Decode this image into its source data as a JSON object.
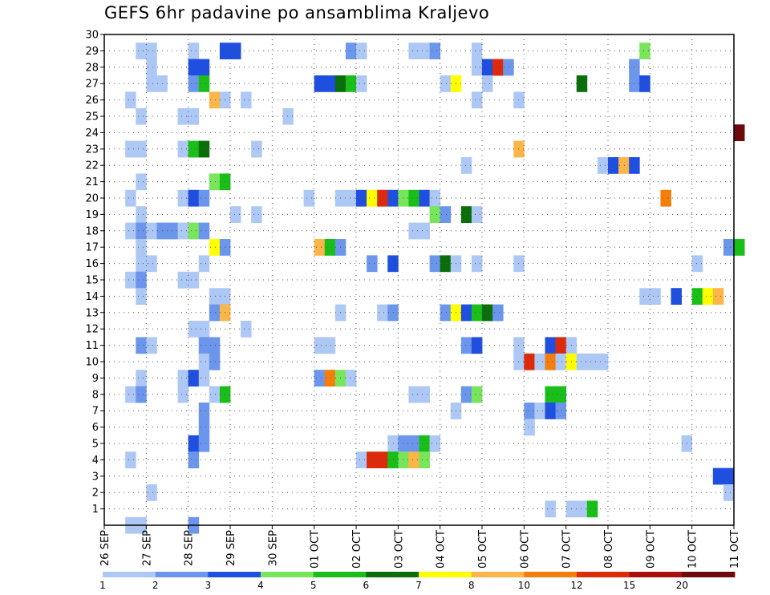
{
  "chart_data": {
    "type": "heatmap",
    "title": "GEFS 6hr padavine po ansamblima Kraljevo",
    "xlabel": "",
    "ylabel": "",
    "x_ticks": [
      "26 SEP",
      "27 SEP",
      "28 SEP",
      "29 SEP",
      "30 SEP",
      "01 OCT",
      "02 OCT",
      "03 OCT",
      "04 OCT",
      "05 OCT",
      "06 OCT",
      "07 OCT",
      "08 OCT",
      "09 OCT",
      "10 OCT",
      "11 OCT"
    ],
    "y_ticks": [
      "1",
      "2",
      "3",
      "4",
      "5",
      "6",
      "7",
      "8",
      "9",
      "10",
      "11",
      "12",
      "13",
      "14",
      "15",
      "16",
      "17",
      "18",
      "19",
      "20",
      "21",
      "22",
      "23",
      "24",
      "25",
      "26",
      "27",
      "28",
      "29",
      "30"
    ],
    "xlim_steps": [
      0,
      60
    ],
    "ylim_members": [
      0,
      30
    ],
    "legend_levels": [
      "1",
      "2",
      "3",
      "4",
      "5",
      "6",
      "7",
      "8",
      "10",
      "12",
      "15",
      "20"
    ],
    "colors": [
      "#aec8f5",
      "#6b96ec",
      "#1f4fe0",
      "#78e65a",
      "#19be19",
      "#0a6e0a",
      "#ffff00",
      "#fbb548",
      "#f47d0c",
      "#dd2a0a",
      "#a80e0e",
      "#6e0a0a"
    ],
    "cells": [
      [
        3,
        29,
        0
      ],
      [
        4,
        29,
        0
      ],
      [
        8,
        29,
        0
      ],
      [
        11,
        29,
        2
      ],
      [
        12,
        29,
        2
      ],
      [
        23,
        29,
        1
      ],
      [
        24,
        29,
        0
      ],
      [
        29,
        29,
        0
      ],
      [
        30,
        29,
        0
      ],
      [
        31,
        29,
        1
      ],
      [
        35,
        29,
        0
      ],
      [
        51,
        29,
        3
      ],
      [
        4,
        28,
        0
      ],
      [
        8,
        28,
        2
      ],
      [
        9,
        28,
        2
      ],
      [
        35,
        28,
        0
      ],
      [
        36,
        28,
        2
      ],
      [
        37,
        28,
        9
      ],
      [
        38,
        28,
        1
      ],
      [
        50,
        28,
        1
      ],
      [
        4,
        27,
        0
      ],
      [
        5,
        27,
        0
      ],
      [
        8,
        27,
        1
      ],
      [
        9,
        27,
        4
      ],
      [
        20,
        27,
        2
      ],
      [
        21,
        27,
        2
      ],
      [
        22,
        27,
        5
      ],
      [
        23,
        27,
        4
      ],
      [
        24,
        27,
        0
      ],
      [
        32,
        27,
        0
      ],
      [
        33,
        27,
        6
      ],
      [
        36,
        27,
        0
      ],
      [
        45,
        27,
        5
      ],
      [
        50,
        27,
        1
      ],
      [
        51,
        27,
        2
      ],
      [
        2,
        26,
        0
      ],
      [
        10,
        26,
        7
      ],
      [
        11,
        26,
        0
      ],
      [
        13,
        26,
        0
      ],
      [
        35,
        26,
        0
      ],
      [
        39,
        26,
        0
      ],
      [
        3,
        25,
        0
      ],
      [
        7,
        25,
        0
      ],
      [
        8,
        25,
        0
      ],
      [
        17,
        25,
        0
      ],
      [
        60,
        24,
        11
      ],
      [
        2,
        23,
        0
      ],
      [
        3,
        23,
        0
      ],
      [
        7,
        23,
        0
      ],
      [
        8,
        23,
        4
      ],
      [
        9,
        23,
        5
      ],
      [
        14,
        23,
        0
      ],
      [
        39,
        23,
        7
      ],
      [
        34,
        22,
        0
      ],
      [
        47,
        22,
        0
      ],
      [
        48,
        22,
        2
      ],
      [
        49,
        22,
        7
      ],
      [
        50,
        22,
        2
      ],
      [
        3,
        21,
        0
      ],
      [
        10,
        21,
        3
      ],
      [
        11,
        21,
        4
      ],
      [
        2,
        20,
        0
      ],
      [
        7,
        20,
        0
      ],
      [
        8,
        20,
        2
      ],
      [
        9,
        20,
        1
      ],
      [
        19,
        20,
        0
      ],
      [
        22,
        20,
        0
      ],
      [
        23,
        20,
        0
      ],
      [
        24,
        20,
        2
      ],
      [
        25,
        20,
        6
      ],
      [
        26,
        20,
        9
      ],
      [
        27,
        20,
        2
      ],
      [
        28,
        20,
        3
      ],
      [
        29,
        20,
        4
      ],
      [
        30,
        20,
        2
      ],
      [
        31,
        20,
        0
      ],
      [
        53,
        20,
        8
      ],
      [
        3,
        19,
        0
      ],
      [
        12,
        19,
        0
      ],
      [
        14,
        19,
        0
      ],
      [
        31,
        19,
        3
      ],
      [
        32,
        19,
        1
      ],
      [
        34,
        19,
        5
      ],
      [
        35,
        19,
        0
      ],
      [
        2,
        18,
        0
      ],
      [
        3,
        18,
        1
      ],
      [
        4,
        18,
        0
      ],
      [
        5,
        18,
        1
      ],
      [
        6,
        18,
        1
      ],
      [
        7,
        18,
        0
      ],
      [
        8,
        18,
        3
      ],
      [
        9,
        18,
        1
      ],
      [
        29,
        18,
        0
      ],
      [
        30,
        18,
        0
      ],
      [
        3,
        17,
        0
      ],
      [
        10,
        17,
        6
      ],
      [
        11,
        17,
        1
      ],
      [
        20,
        17,
        7
      ],
      [
        21,
        17,
        4
      ],
      [
        22,
        17,
        1
      ],
      [
        59,
        17,
        1
      ],
      [
        60,
        17,
        4
      ],
      [
        3,
        16,
        0
      ],
      [
        4,
        16,
        0
      ],
      [
        9,
        16,
        0
      ],
      [
        25,
        16,
        1
      ],
      [
        27,
        16,
        2
      ],
      [
        31,
        16,
        1
      ],
      [
        32,
        16,
        5
      ],
      [
        33,
        16,
        0
      ],
      [
        35,
        16,
        0
      ],
      [
        39,
        16,
        0
      ],
      [
        56,
        16,
        0
      ],
      [
        2,
        15,
        0
      ],
      [
        3,
        15,
        1
      ],
      [
        7,
        15,
        0
      ],
      [
        8,
        15,
        0
      ],
      [
        3,
        14,
        0
      ],
      [
        10,
        14,
        0
      ],
      [
        11,
        14,
        0
      ],
      [
        51,
        14,
        0
      ],
      [
        52,
        14,
        0
      ],
      [
        54,
        14,
        2
      ],
      [
        56,
        14,
        4
      ],
      [
        57,
        14,
        6
      ],
      [
        58,
        14,
        7
      ],
      [
        10,
        13,
        1
      ],
      [
        11,
        13,
        7
      ],
      [
        22,
        13,
        0
      ],
      [
        26,
        13,
        0
      ],
      [
        27,
        13,
        1
      ],
      [
        32,
        13,
        1
      ],
      [
        33,
        13,
        6
      ],
      [
        34,
        13,
        2
      ],
      [
        35,
        13,
        4
      ],
      [
        36,
        13,
        5
      ],
      [
        37,
        13,
        1
      ],
      [
        8,
        12,
        0
      ],
      [
        9,
        12,
        0
      ],
      [
        13,
        12,
        0
      ],
      [
        3,
        11,
        1
      ],
      [
        4,
        11,
        0
      ],
      [
        9,
        11,
        1
      ],
      [
        10,
        11,
        1
      ],
      [
        20,
        11,
        0
      ],
      [
        21,
        11,
        0
      ],
      [
        34,
        11,
        1
      ],
      [
        35,
        11,
        2
      ],
      [
        39,
        11,
        0
      ],
      [
        42,
        11,
        2
      ],
      [
        43,
        11,
        9
      ],
      [
        44,
        11,
        0
      ],
      [
        9,
        10,
        0
      ],
      [
        10,
        10,
        1
      ],
      [
        39,
        10,
        0
      ],
      [
        40,
        10,
        9
      ],
      [
        41,
        10,
        0
      ],
      [
        42,
        10,
        8
      ],
      [
        43,
        10,
        0
      ],
      [
        44,
        10,
        6
      ],
      [
        45,
        10,
        0
      ],
      [
        46,
        10,
        0
      ],
      [
        47,
        10,
        0
      ],
      [
        3,
        9,
        0
      ],
      [
        7,
        9,
        0
      ],
      [
        8,
        9,
        2
      ],
      [
        9,
        9,
        0
      ],
      [
        20,
        9,
        1
      ],
      [
        21,
        9,
        8
      ],
      [
        22,
        9,
        3
      ],
      [
        23,
        9,
        0
      ],
      [
        2,
        8,
        0
      ],
      [
        3,
        8,
        1
      ],
      [
        7,
        8,
        0
      ],
      [
        10,
        8,
        0
      ],
      [
        11,
        8,
        4
      ],
      [
        29,
        8,
        0
      ],
      [
        30,
        8,
        0
      ],
      [
        34,
        8,
        1
      ],
      [
        35,
        8,
        3
      ],
      [
        42,
        8,
        4
      ],
      [
        43,
        8,
        4
      ],
      [
        9,
        7,
        1
      ],
      [
        33,
        7,
        0
      ],
      [
        40,
        7,
        1
      ],
      [
        41,
        7,
        0
      ],
      [
        42,
        7,
        2
      ],
      [
        43,
        7,
        1
      ],
      [
        9,
        6,
        1
      ],
      [
        40,
        6,
        0
      ],
      [
        8,
        5,
        2
      ],
      [
        9,
        5,
        1
      ],
      [
        27,
        5,
        0
      ],
      [
        28,
        5,
        1
      ],
      [
        29,
        5,
        1
      ],
      [
        30,
        5,
        4
      ],
      [
        31,
        5,
        0
      ],
      [
        55,
        5,
        0
      ],
      [
        2,
        4,
        0
      ],
      [
        8,
        4,
        1
      ],
      [
        24,
        4,
        0
      ],
      [
        25,
        4,
        9
      ],
      [
        26,
        4,
        9
      ],
      [
        27,
        4,
        4
      ],
      [
        28,
        4,
        3
      ],
      [
        29,
        4,
        7
      ],
      [
        30,
        4,
        3
      ],
      [
        58,
        3,
        2
      ],
      [
        59,
        3,
        2
      ],
      [
        4,
        2,
        0
      ],
      [
        59,
        2,
        0
      ],
      [
        42,
        1,
        0
      ],
      [
        44,
        1,
        0
      ],
      [
        45,
        1,
        0
      ],
      [
        46,
        1,
        4
      ],
      [
        2,
        0,
        0
      ],
      [
        3,
        0,
        0
      ],
      [
        8,
        0,
        1
      ]
    ]
  }
}
